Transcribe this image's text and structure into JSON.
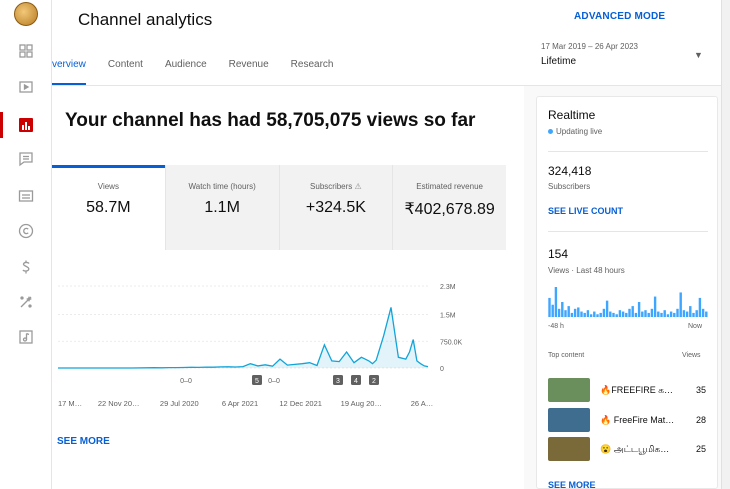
{
  "header": {
    "title": "Channel analytics",
    "advanced_mode": "ADVANCED MODE",
    "date_range": "17 Mar 2019 – 26 Apr 2023",
    "range_label": "Lifetime"
  },
  "tabs": [
    {
      "label": "verview"
    },
    {
      "label": "Content"
    },
    {
      "label": "Audience"
    },
    {
      "label": "Revenue"
    },
    {
      "label": "Research"
    }
  ],
  "main": {
    "headline": "Your channel has had 58,705,075 views so far",
    "metrics": [
      {
        "label": "Views",
        "value": "58.7M"
      },
      {
        "label": "Watch time (hours)",
        "value": "1.1M"
      },
      {
        "label": "Subscribers",
        "value": "+324.5K"
      },
      {
        "label": "Estimated revenue",
        "value": "₹402,678.89"
      }
    ],
    "see_more": "SEE MORE"
  },
  "chart_data": {
    "type": "line",
    "x_tick_labels": [
      "17 M…",
      "22 Nov 20…",
      "29 Jul 2020",
      "6 Apr 2021",
      "12 Dec 2021",
      "19 Aug 20…",
      "26 A…"
    ],
    "y_tick_labels": [
      "2.3M",
      "1.5M",
      "750.0K",
      "0"
    ],
    "ylim": [
      0,
      2300000
    ],
    "x": [
      0,
      4,
      8,
      12,
      16,
      20,
      24,
      26,
      28,
      30,
      32,
      34,
      36,
      38,
      40,
      42,
      44,
      46,
      48,
      50,
      52,
      54,
      56,
      58,
      60,
      62,
      64,
      66,
      68,
      70,
      72,
      74,
      76,
      78,
      80,
      82,
      83,
      84,
      85,
      86,
      88,
      90,
      92,
      94,
      95,
      96,
      97,
      98,
      99,
      100
    ],
    "values": [
      0,
      0,
      0,
      0,
      0,
      0,
      5000,
      8000,
      6000,
      10000,
      12000,
      15000,
      20000,
      18000,
      25000,
      22000,
      30000,
      35000,
      28000,
      40000,
      120000,
      60000,
      90000,
      50000,
      250000,
      80000,
      100000,
      120000,
      150000,
      70000,
      650000,
      200000,
      180000,
      450000,
      150000,
      300000,
      250000,
      200000,
      120000,
      220000,
      900000,
      1700000,
      300000,
      250000,
      450000,
      800000,
      200000,
      120000,
      60000,
      40000
    ],
    "markers": [
      {
        "label": "0–0"
      },
      {
        "label": "5"
      },
      {
        "label": "0–0"
      },
      {
        "label": "3"
      },
      {
        "label": "4"
      },
      {
        "label": "2"
      }
    ],
    "grid": true,
    "color": "#12a4d9"
  },
  "realtime": {
    "title": "Realtime",
    "status": "Updating live",
    "subscribers": "324,418",
    "subscribers_label": "Subscribers",
    "live_count": "SEE LIVE COUNT",
    "views": "154",
    "views_label": "Views · Last 48 hours",
    "bars": [
      14,
      9,
      22,
      6,
      11,
      5,
      8,
      3,
      6,
      7,
      4,
      3,
      5,
      2,
      4,
      2,
      3,
      6,
      12,
      4,
      3,
      2,
      5,
      4,
      3,
      6,
      8,
      3,
      11,
      4,
      5,
      3,
      6,
      15,
      4,
      3,
      5,
      2,
      4,
      3,
      6,
      18,
      5,
      4,
      8,
      3,
      5,
      14,
      6,
      4
    ],
    "axis_left": "-48 h",
    "axis_right": "Now",
    "top_content_label": "Top content",
    "views_col": "Views",
    "rows": [
      {
        "title": "🔥FREEFIRE க…",
        "views": "35",
        "thumb": "#6a8f5c"
      },
      {
        "title": "🔥 FreeFire Mat…",
        "views": "28",
        "thumb": "#3f6d8f"
      },
      {
        "title": "😮 அட்டபூமிக…",
        "views": "25",
        "thumb": "#7a6a3a"
      }
    ],
    "see_more": "SEE MORE"
  },
  "colors": {
    "accent": "#065fd4",
    "active_nav": "#cc0000",
    "chart_line": "#12a4d9"
  }
}
